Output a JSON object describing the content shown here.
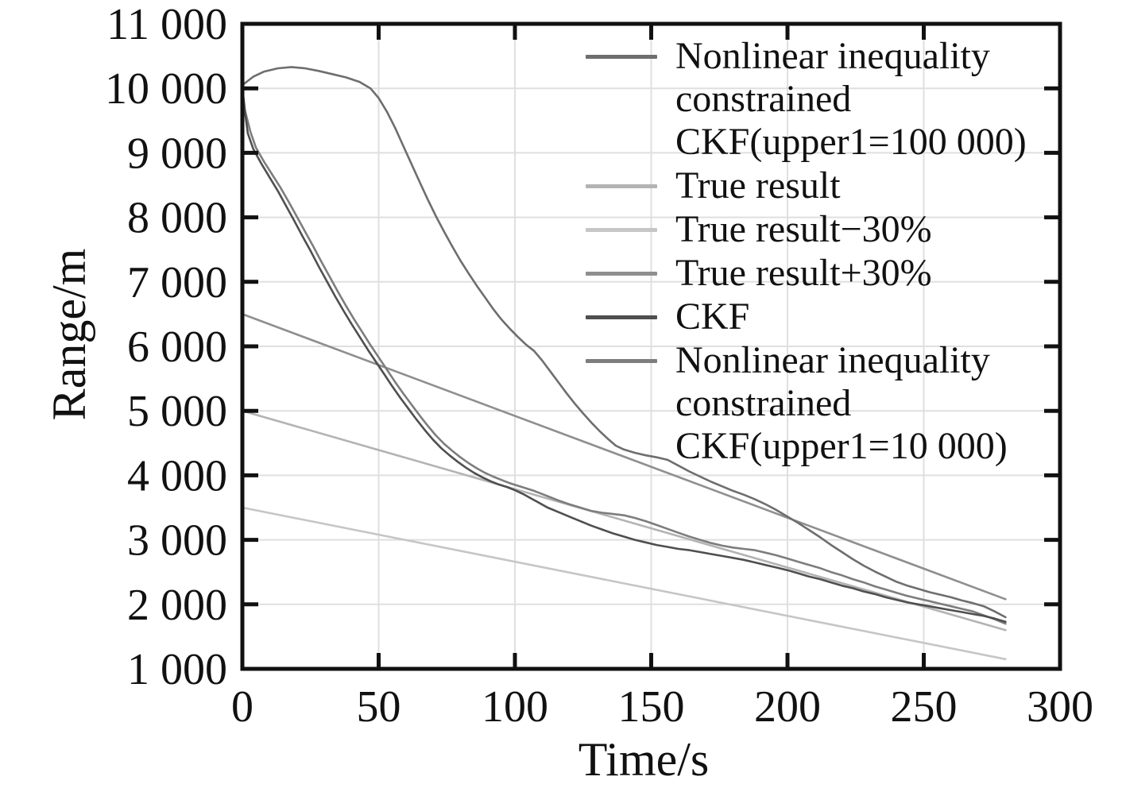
{
  "figure_title": "",
  "axes": {
    "x": {
      "label": "Time/s",
      "range": [
        0,
        300
      ],
      "tick_values": [
        0,
        50,
        100,
        150,
        200,
        250,
        300
      ],
      "tick_labels": [
        "0",
        "50",
        "100",
        "150",
        "200",
        "250",
        "300"
      ]
    },
    "y": {
      "label": "Range/m",
      "range": [
        1000,
        11000
      ],
      "tick_values": [
        1000,
        2000,
        3000,
        4000,
        5000,
        6000,
        7000,
        8000,
        9000,
        10000,
        11000
      ],
      "tick_labels": [
        "1 000",
        "2 000",
        "3 000",
        "4 000",
        "5 000",
        "6 000",
        "7 000",
        "8 000",
        "9 000",
        "10 000",
        "11 000"
      ]
    }
  },
  "legend": {
    "position": "top-right-inside",
    "items": [
      {
        "lines": [
          "Nonlinear inequality",
          "constrained",
          "CKF(upper1=100 000)"
        ],
        "color": "#6e6e6e"
      },
      {
        "lines": [
          "True result"
        ],
        "color": "#b3b3b3"
      },
      {
        "lines": [
          "True result−30%"
        ],
        "color": "#c6c6c6"
      },
      {
        "lines": [
          "True result+30%"
        ],
        "color": "#8f8f8f"
      },
      {
        "lines": [
          "CKF"
        ],
        "color": "#4f4f4f"
      },
      {
        "lines": [
          "Nonlinear inequality",
          "constrained",
          "CKF(upper1=10 000)"
        ],
        "color": "#7d7d7d"
      }
    ]
  },
  "chart_data": {
    "type": "line",
    "title": "",
    "xlabel": "Time/s",
    "ylabel": "Range/m",
    "xlim": [
      0,
      300
    ],
    "ylim": [
      1000,
      11000
    ],
    "grid": true,
    "grid_color": "#dfdfdf",
    "axis_color": "#111111",
    "legend_position": "top-right-inside",
    "draw_order": [
      2,
      1,
      3,
      0,
      5,
      4
    ],
    "series": [
      {
        "name": "Nonlinear inequality constrained CKF(upper1=100 000)",
        "color": "#6e6e6e",
        "points": [
          [
            0,
            10050
          ],
          [
            4,
            10180
          ],
          [
            8,
            10260
          ],
          [
            13,
            10310
          ],
          [
            18,
            10330
          ],
          [
            23,
            10310
          ],
          [
            28,
            10270
          ],
          [
            33,
            10220
          ],
          [
            38,
            10170
          ],
          [
            43,
            10100
          ],
          [
            47,
            10000
          ],
          [
            50,
            9850
          ],
          [
            53,
            9640
          ],
          [
            56,
            9390
          ],
          [
            59,
            9110
          ],
          [
            62,
            8830
          ],
          [
            65,
            8550
          ],
          [
            68,
            8280
          ],
          [
            71,
            8020
          ],
          [
            74,
            7780
          ],
          [
            77,
            7550
          ],
          [
            80,
            7330
          ],
          [
            83,
            7130
          ],
          [
            86,
            6940
          ],
          [
            89,
            6760
          ],
          [
            92,
            6580
          ],
          [
            95,
            6420
          ],
          [
            98,
            6280
          ],
          [
            101,
            6150
          ],
          [
            104,
            6030
          ],
          [
            107,
            5930
          ],
          [
            110,
            5780
          ],
          [
            113,
            5610
          ],
          [
            116,
            5440
          ],
          [
            119,
            5270
          ],
          [
            122,
            5110
          ],
          [
            125,
            4960
          ],
          [
            128,
            4820
          ],
          [
            131,
            4690
          ],
          [
            134,
            4570
          ],
          [
            137,
            4460
          ],
          [
            140,
            4400
          ],
          [
            144,
            4350
          ],
          [
            148,
            4310
          ],
          [
            152,
            4280
          ],
          [
            156,
            4240
          ],
          [
            160,
            4150
          ],
          [
            164,
            4060
          ],
          [
            168,
            3980
          ],
          [
            172,
            3900
          ],
          [
            176,
            3830
          ],
          [
            180,
            3760
          ],
          [
            184,
            3700
          ],
          [
            188,
            3630
          ],
          [
            192,
            3550
          ],
          [
            196,
            3460
          ],
          [
            200,
            3360
          ],
          [
            204,
            3260
          ],
          [
            208,
            3150
          ],
          [
            212,
            3040
          ],
          [
            216,
            2920
          ],
          [
            220,
            2810
          ],
          [
            224,
            2700
          ],
          [
            228,
            2600
          ],
          [
            232,
            2510
          ],
          [
            236,
            2430
          ],
          [
            240,
            2350
          ],
          [
            244,
            2290
          ],
          [
            248,
            2240
          ],
          [
            252,
            2190
          ],
          [
            256,
            2150
          ],
          [
            260,
            2110
          ],
          [
            264,
            2060
          ],
          [
            268,
            2020
          ],
          [
            272,
            1970
          ],
          [
            276,
            1890
          ],
          [
            280,
            1800
          ]
        ]
      },
      {
        "name": "True result",
        "color": "#b3b3b3",
        "points": [
          [
            0,
            5000
          ],
          [
            280,
            1600
          ]
        ]
      },
      {
        "name": "True result−30%",
        "color": "#c6c6c6",
        "points": [
          [
            0,
            3500
          ],
          [
            280,
            1150
          ]
        ]
      },
      {
        "name": "True result+30%",
        "color": "#8f8f8f",
        "points": [
          [
            0,
            6500
          ],
          [
            280,
            2080
          ]
        ]
      },
      {
        "name": "CKF",
        "color": "#4f4f4f",
        "points": [
          [
            0,
            10000
          ],
          [
            1,
            9620
          ],
          [
            2,
            9300
          ],
          [
            4,
            9060
          ],
          [
            7,
            8830
          ],
          [
            10,
            8620
          ],
          [
            13,
            8410
          ],
          [
            16,
            8180
          ],
          [
            19,
            7950
          ],
          [
            22,
            7710
          ],
          [
            25,
            7480
          ],
          [
            28,
            7240
          ],
          [
            31,
            7010
          ],
          [
            34,
            6780
          ],
          [
            37,
            6560
          ],
          [
            40,
            6350
          ],
          [
            43,
            6150
          ],
          [
            46,
            5950
          ],
          [
            49,
            5760
          ],
          [
            52,
            5570
          ],
          [
            55,
            5380
          ],
          [
            58,
            5200
          ],
          [
            61,
            5030
          ],
          [
            64,
            4860
          ],
          [
            67,
            4700
          ],
          [
            70,
            4550
          ],
          [
            73,
            4420
          ],
          [
            76,
            4310
          ],
          [
            79,
            4210
          ],
          [
            82,
            4120
          ],
          [
            85,
            4040
          ],
          [
            88,
            3970
          ],
          [
            91,
            3910
          ],
          [
            94,
            3860
          ],
          [
            97,
            3820
          ],
          [
            100,
            3770
          ],
          [
            103,
            3710
          ],
          [
            106,
            3640
          ],
          [
            109,
            3570
          ],
          [
            112,
            3500
          ],
          [
            116,
            3430
          ],
          [
            120,
            3360
          ],
          [
            124,
            3290
          ],
          [
            128,
            3220
          ],
          [
            132,
            3160
          ],
          [
            136,
            3100
          ],
          [
            140,
            3050
          ],
          [
            144,
            3000
          ],
          [
            148,
            2960
          ],
          [
            152,
            2920
          ],
          [
            156,
            2890
          ],
          [
            160,
            2860
          ],
          [
            164,
            2840
          ],
          [
            168,
            2810
          ],
          [
            172,
            2780
          ],
          [
            176,
            2750
          ],
          [
            180,
            2720
          ],
          [
            184,
            2690
          ],
          [
            188,
            2650
          ],
          [
            192,
            2610
          ],
          [
            196,
            2570
          ],
          [
            200,
            2530
          ],
          [
            204,
            2480
          ],
          [
            208,
            2430
          ],
          [
            212,
            2390
          ],
          [
            216,
            2340
          ],
          [
            220,
            2290
          ],
          [
            224,
            2250
          ],
          [
            228,
            2200
          ],
          [
            232,
            2160
          ],
          [
            236,
            2110
          ],
          [
            240,
            2070
          ],
          [
            244,
            2030
          ],
          [
            248,
            2000
          ],
          [
            252,
            1970
          ],
          [
            256,
            1940
          ],
          [
            260,
            1910
          ],
          [
            264,
            1880
          ],
          [
            268,
            1850
          ],
          [
            272,
            1820
          ],
          [
            276,
            1780
          ],
          [
            280,
            1730
          ]
        ]
      },
      {
        "name": "Nonlinear inequality constrained CKF(upper1=10 000)",
        "color": "#7d7d7d",
        "points": [
          [
            0,
            10000
          ],
          [
            1,
            9650
          ],
          [
            3,
            9320
          ],
          [
            5,
            9080
          ],
          [
            8,
            8860
          ],
          [
            11,
            8660
          ],
          [
            14,
            8460
          ],
          [
            17,
            8240
          ],
          [
            20,
            8010
          ],
          [
            23,
            7780
          ],
          [
            26,
            7550
          ],
          [
            29,
            7310
          ],
          [
            32,
            7080
          ],
          [
            35,
            6850
          ],
          [
            38,
            6630
          ],
          [
            41,
            6420
          ],
          [
            44,
            6220
          ],
          [
            47,
            6020
          ],
          [
            50,
            5830
          ],
          [
            53,
            5640
          ],
          [
            56,
            5450
          ],
          [
            59,
            5270
          ],
          [
            62,
            5100
          ],
          [
            65,
            4930
          ],
          [
            68,
            4770
          ],
          [
            71,
            4620
          ],
          [
            74,
            4490
          ],
          [
            77,
            4380
          ],
          [
            80,
            4280
          ],
          [
            83,
            4190
          ],
          [
            86,
            4110
          ],
          [
            89,
            4040
          ],
          [
            92,
            3980
          ],
          [
            95,
            3930
          ],
          [
            98,
            3880
          ],
          [
            101,
            3840
          ],
          [
            104,
            3800
          ],
          [
            107,
            3760
          ],
          [
            110,
            3710
          ],
          [
            113,
            3660
          ],
          [
            116,
            3610
          ],
          [
            120,
            3550
          ],
          [
            124,
            3500
          ],
          [
            128,
            3450
          ],
          [
            132,
            3420
          ],
          [
            136,
            3400
          ],
          [
            140,
            3380
          ],
          [
            144,
            3340
          ],
          [
            148,
            3290
          ],
          [
            152,
            3230
          ],
          [
            156,
            3170
          ],
          [
            160,
            3110
          ],
          [
            164,
            3050
          ],
          [
            168,
            3000
          ],
          [
            172,
            2950
          ],
          [
            176,
            2910
          ],
          [
            180,
            2880
          ],
          [
            184,
            2860
          ],
          [
            188,
            2840
          ],
          [
            192,
            2800
          ],
          [
            196,
            2760
          ],
          [
            200,
            2710
          ],
          [
            204,
            2660
          ],
          [
            208,
            2610
          ],
          [
            212,
            2560
          ],
          [
            216,
            2500
          ],
          [
            220,
            2450
          ],
          [
            224,
            2390
          ],
          [
            228,
            2340
          ],
          [
            232,
            2280
          ],
          [
            236,
            2230
          ],
          [
            240,
            2180
          ],
          [
            244,
            2130
          ],
          [
            248,
            2090
          ],
          [
            252,
            2050
          ],
          [
            256,
            2010
          ],
          [
            260,
            1970
          ],
          [
            264,
            1930
          ],
          [
            268,
            1890
          ],
          [
            272,
            1830
          ],
          [
            276,
            1770
          ],
          [
            280,
            1700
          ]
        ]
      }
    ]
  }
}
